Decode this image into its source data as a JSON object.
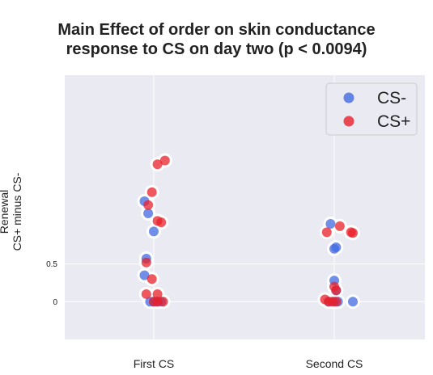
{
  "chart_data": {
    "type": "scatter",
    "title_line1": "Main Effect of order on skin conductance",
    "title_line2": "response to CS on day two (p < 0.0094)",
    "ylabel_line1": "Renewal",
    "ylabel_line2": "CS+ minus CS-",
    "xlabel": "",
    "categories": [
      "First CS",
      "Second CS"
    ],
    "y_ticks": [
      0,
      0.5
    ],
    "y_tick_labels": [
      "0",
      "0.5"
    ],
    "ylim": [
      -0.5,
      3.0
    ],
    "grid": true,
    "legend_position": "upper-right",
    "colors": {
      "CS-": "#4169e1",
      "CS+": "#e8202a",
      "background": "#eaeaf2",
      "grid": "#ffffff"
    },
    "series": [
      {
        "name": "CS-",
        "color": "#4169e1",
        "points": [
          {
            "category": "First CS",
            "jitter": -0.05,
            "y": 1.33
          },
          {
            "category": "First CS",
            "jitter": -0.03,
            "y": 1.17
          },
          {
            "category": "First CS",
            "jitter": 0.0,
            "y": 0.93
          },
          {
            "category": "First CS",
            "jitter": -0.04,
            "y": 0.57
          },
          {
            "category": "First CS",
            "jitter": -0.05,
            "y": 0.35
          },
          {
            "category": "First CS",
            "jitter": -0.02,
            "y": 0.0
          },
          {
            "category": "First CS",
            "jitter": 0.0,
            "y": 0.0
          },
          {
            "category": "First CS",
            "jitter": 0.02,
            "y": 0.0
          },
          {
            "category": "First CS",
            "jitter": 0.04,
            "y": 0.0
          },
          {
            "category": "Second CS",
            "jitter": -0.02,
            "y": 1.03
          },
          {
            "category": "Second CS",
            "jitter": 0.0,
            "y": 0.7
          },
          {
            "category": "Second CS",
            "jitter": 0.01,
            "y": 0.72
          },
          {
            "category": "Second CS",
            "jitter": 0.0,
            "y": 0.28
          },
          {
            "category": "Second CS",
            "jitter": 0.01,
            "y": 0.15
          },
          {
            "category": "Second CS",
            "jitter": -0.03,
            "y": 0.0
          },
          {
            "category": "Second CS",
            "jitter": 0.0,
            "y": 0.0
          },
          {
            "category": "Second CS",
            "jitter": 0.02,
            "y": 0.0
          },
          {
            "category": "Second CS",
            "jitter": 0.1,
            "y": 0.0
          }
        ]
      },
      {
        "name": "CS+",
        "color": "#e8202a",
        "points": [
          {
            "category": "First CS",
            "jitter": 0.02,
            "y": 1.82
          },
          {
            "category": "First CS",
            "jitter": 0.06,
            "y": 1.87
          },
          {
            "category": "First CS",
            "jitter": -0.01,
            "y": 1.45
          },
          {
            "category": "First CS",
            "jitter": -0.03,
            "y": 1.28
          },
          {
            "category": "First CS",
            "jitter": 0.02,
            "y": 1.07
          },
          {
            "category": "First CS",
            "jitter": 0.04,
            "y": 1.05
          },
          {
            "category": "First CS",
            "jitter": -0.04,
            "y": 0.52
          },
          {
            "category": "First CS",
            "jitter": -0.01,
            "y": 0.3
          },
          {
            "category": "First CS",
            "jitter": -0.04,
            "y": 0.1
          },
          {
            "category": "First CS",
            "jitter": 0.02,
            "y": 0.1
          },
          {
            "category": "First CS",
            "jitter": 0.0,
            "y": 0.0
          },
          {
            "category": "First CS",
            "jitter": 0.02,
            "y": 0.0
          },
          {
            "category": "First CS",
            "jitter": 0.05,
            "y": 0.0
          },
          {
            "category": "Second CS",
            "jitter": 0.03,
            "y": 1.0
          },
          {
            "category": "Second CS",
            "jitter": -0.04,
            "y": 0.92
          },
          {
            "category": "Second CS",
            "jitter": 0.09,
            "y": 0.92
          },
          {
            "category": "Second CS",
            "jitter": 0.1,
            "y": 0.91
          },
          {
            "category": "Second CS",
            "jitter": 0.0,
            "y": 0.2
          },
          {
            "category": "Second CS",
            "jitter": 0.01,
            "y": 0.15
          },
          {
            "category": "Second CS",
            "jitter": -0.05,
            "y": 0.03
          },
          {
            "category": "Second CS",
            "jitter": -0.03,
            "y": 0.0
          },
          {
            "category": "Second CS",
            "jitter": -0.01,
            "y": 0.0
          },
          {
            "category": "Second CS",
            "jitter": 0.01,
            "y": 0.0
          }
        ]
      }
    ]
  }
}
